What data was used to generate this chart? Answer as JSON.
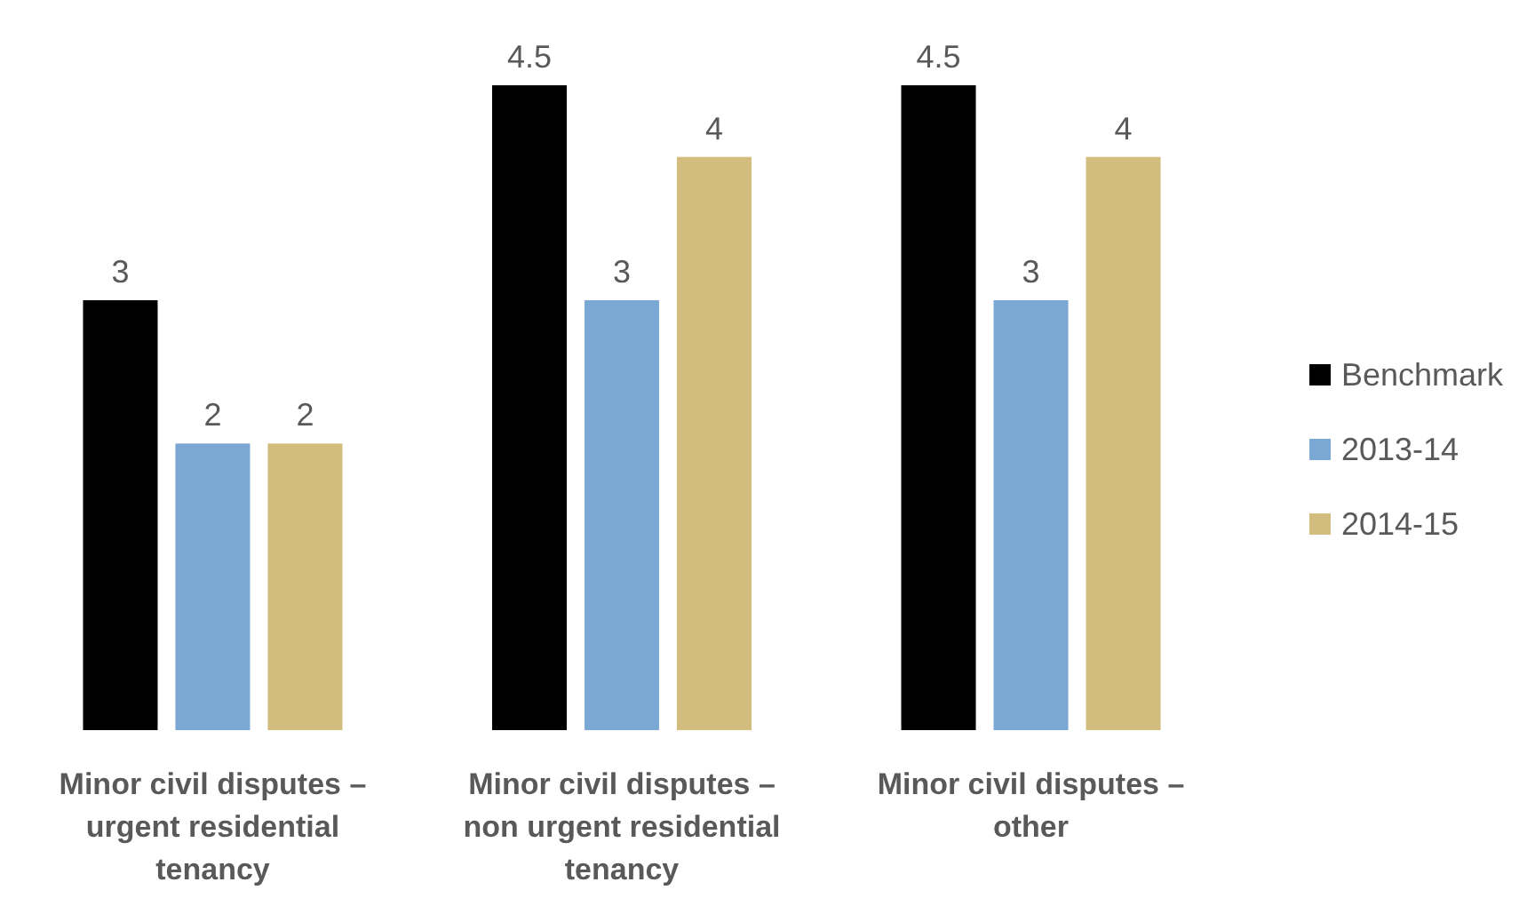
{
  "chart_data": {
    "type": "bar",
    "categories": [
      "Minor civil disputes – urgent residential tenancy",
      "Minor civil disputes – non urgent residential tenancy",
      "Minor civil disputes – other"
    ],
    "series": [
      {
        "name": "Benchmark",
        "color": "#000000",
        "values": [
          3,
          4.5,
          4.5
        ]
      },
      {
        "name": "2013-14",
        "color": "#7ba7d4",
        "values": [
          2,
          3,
          3
        ]
      },
      {
        "name": "2014-15",
        "color": "#d2bd7e",
        "values": [
          2,
          4,
          4
        ]
      }
    ],
    "data_labels": true,
    "legend": "right"
  }
}
